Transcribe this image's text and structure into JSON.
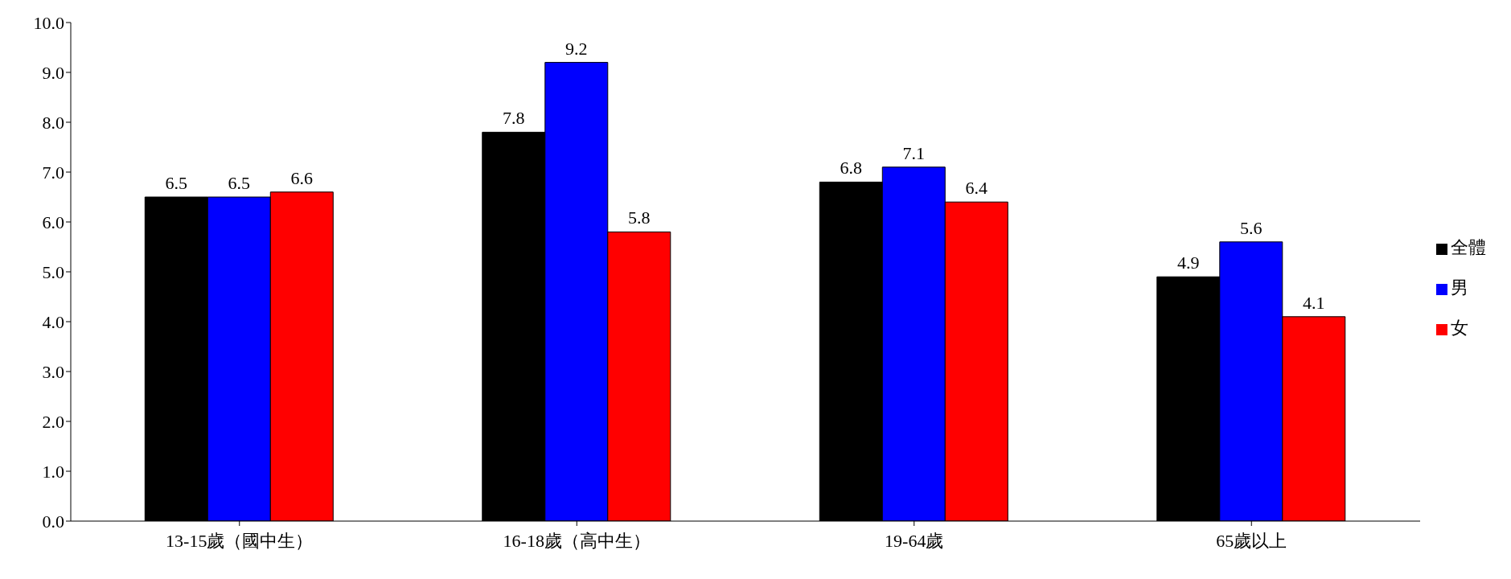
{
  "chart_data": {
    "type": "bar",
    "categories": [
      "13-15歲（國中生）",
      "16-18歲（高中生）",
      "19-64歲",
      "65歲以上"
    ],
    "series": [
      {
        "name": "全體",
        "color": "#000000",
        "values": [
          6.5,
          7.8,
          6.8,
          4.9
        ]
      },
      {
        "name": "男",
        "color": "#0000ff",
        "values": [
          6.5,
          9.2,
          7.1,
          5.6
        ]
      },
      {
        "name": "女",
        "color": "#ff0000",
        "values": [
          6.6,
          5.8,
          6.4,
          4.1
        ]
      }
    ],
    "ylim": [
      0,
      10
    ],
    "yticks": [
      {
        "value": 0,
        "label": "0.0"
      },
      {
        "value": 1,
        "label": "1.0"
      },
      {
        "value": 2,
        "label": "2.0"
      },
      {
        "value": 3,
        "label": "3.0"
      },
      {
        "value": 4,
        "label": "4.0"
      },
      {
        "value": 5,
        "label": "5.0"
      },
      {
        "value": 6,
        "label": "6.0"
      },
      {
        "value": 7,
        "label": "7.0"
      },
      {
        "value": 8,
        "label": "8.0"
      },
      {
        "value": 9,
        "label": "9.0"
      },
      {
        "value": 10,
        "label": "10.0"
      }
    ],
    "data_labels": true,
    "legend": "right",
    "grid": false
  }
}
